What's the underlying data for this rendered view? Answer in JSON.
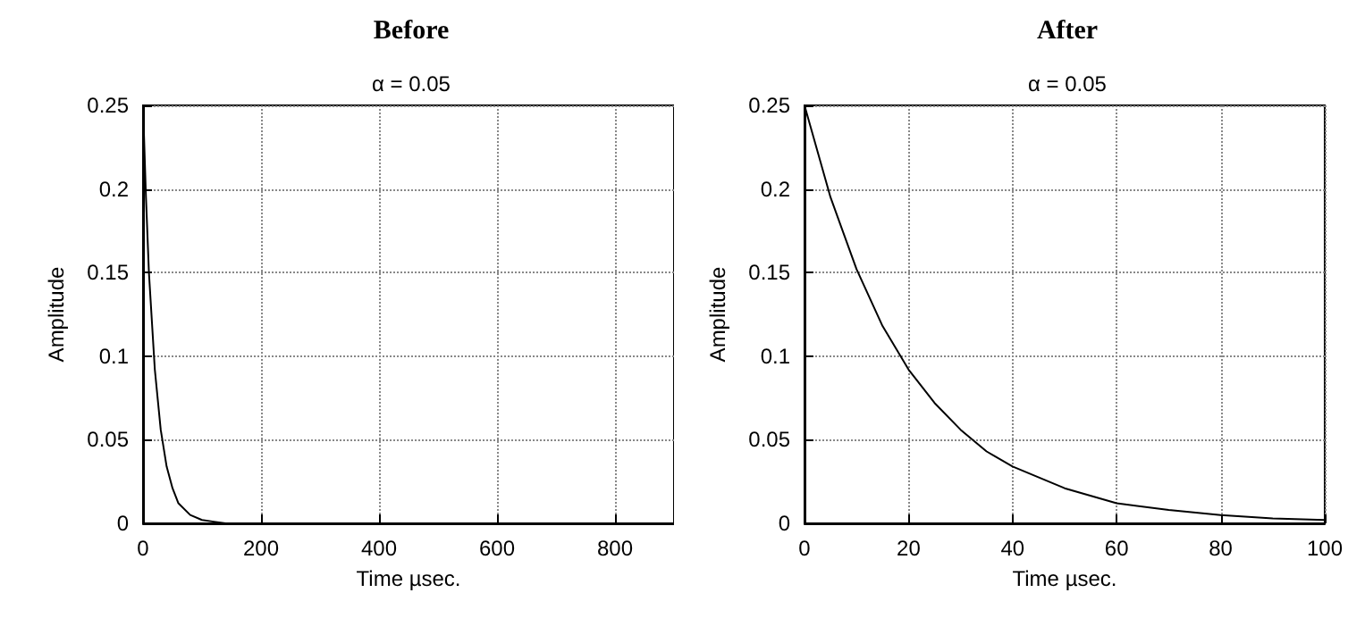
{
  "chart_data": [
    {
      "type": "line",
      "title": "Before",
      "subtitle": "α = 0.05",
      "xlabel": "Time µsec.",
      "ylabel": "Amplitude",
      "x": [
        0,
        5,
        10,
        20,
        30,
        40,
        50,
        60,
        80,
        100,
        120,
        140
      ],
      "values": [
        0.25,
        0.195,
        0.15,
        0.092,
        0.056,
        0.034,
        0.021,
        0.012,
        0.005,
        0.002,
        0.001,
        0
      ],
      "color": "#000000",
      "xlim": [
        0,
        900
      ],
      "ylim": [
        0,
        0.25
      ],
      "xticks": [
        0,
        200,
        400,
        600,
        800
      ],
      "yticks": [
        0,
        0.05,
        0.1,
        0.15,
        0.2,
        0.25
      ],
      "grid": true,
      "marker": "none",
      "line_style": "solid"
    },
    {
      "type": "line",
      "title": "After",
      "subtitle": "α = 0.05",
      "xlabel": "Time µsec.",
      "ylabel": "Amplitude",
      "x": [
        0,
        5,
        10,
        15,
        20,
        25,
        30,
        35,
        40,
        50,
        60,
        70,
        80,
        90,
        100
      ],
      "values": [
        0.25,
        0.195,
        0.152,
        0.118,
        0.092,
        0.072,
        0.056,
        0.043,
        0.034,
        0.021,
        0.012,
        0.008,
        0.005,
        0.003,
        0.002
      ],
      "color": "#000000",
      "xlim": [
        0,
        100
      ],
      "ylim": [
        0,
        0.25
      ],
      "xticks": [
        0,
        20,
        40,
        60,
        80,
        100
      ],
      "yticks": [
        0,
        0.05,
        0.1,
        0.15,
        0.2,
        0.25
      ],
      "grid": true,
      "marker": "none",
      "line_style": "solid"
    }
  ]
}
